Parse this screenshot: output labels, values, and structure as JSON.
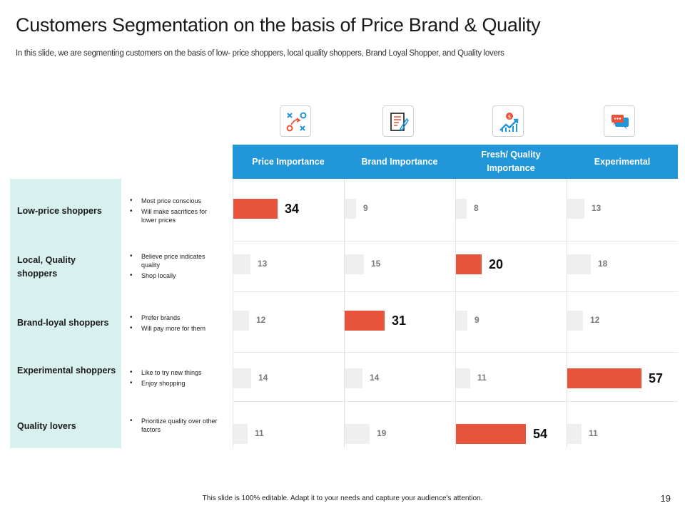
{
  "slide": {
    "title": "Customers Segmentation on the basis of Price Brand & Quality",
    "subtitle": "In this slide, we are segmenting customers on the basis of low- price shoppers, local quality shoppers, Brand Loyal Shopper, and Quality lovers",
    "footer": "This slide is 100% editable.  Adapt it to your needs and capture your audience's attention.",
    "page_number": "19"
  },
  "icons": [
    "strategy-icon",
    "document-icon",
    "growth-chart-icon",
    "chat-icon"
  ],
  "columns": [
    "Price Importance",
    "Brand Importance",
    "Fresh/ Quality Importance",
    "Experimental"
  ],
  "segments": [
    {
      "label": "Low-price shoppers",
      "bullets": [
        "Most price conscious",
        "Will make sacrifices  for lower prices"
      ]
    },
    {
      "label": "Local, Quality shoppers",
      "bullets": [
        "Believe price indicates quality",
        "Shop locally"
      ]
    },
    {
      "label": "Brand-loyal shoppers",
      "bullets": [
        "Prefer brands",
        "Will pay more for them"
      ]
    },
    {
      "label": "Experimental shoppers",
      "bullets": [
        "Like to try new things",
        "Enjoy shopping"
      ]
    },
    {
      "label": "Quality lovers",
      "bullets": [
        "Prioritize quality over other factors"
      ]
    }
  ],
  "values": [
    [
      "34",
      "9",
      "8",
      "13"
    ],
    [
      "13",
      "15",
      "20",
      "18"
    ],
    [
      "12",
      "31",
      "9",
      "12"
    ],
    [
      "14",
      "14",
      "11",
      "57"
    ],
    [
      "11",
      "19",
      "54",
      "11"
    ]
  ],
  "colors": {
    "header": "#2196d9",
    "highlight": "#e8533b",
    "neutral": "#efefef",
    "segment_bg": "#d8f1ee"
  }
}
